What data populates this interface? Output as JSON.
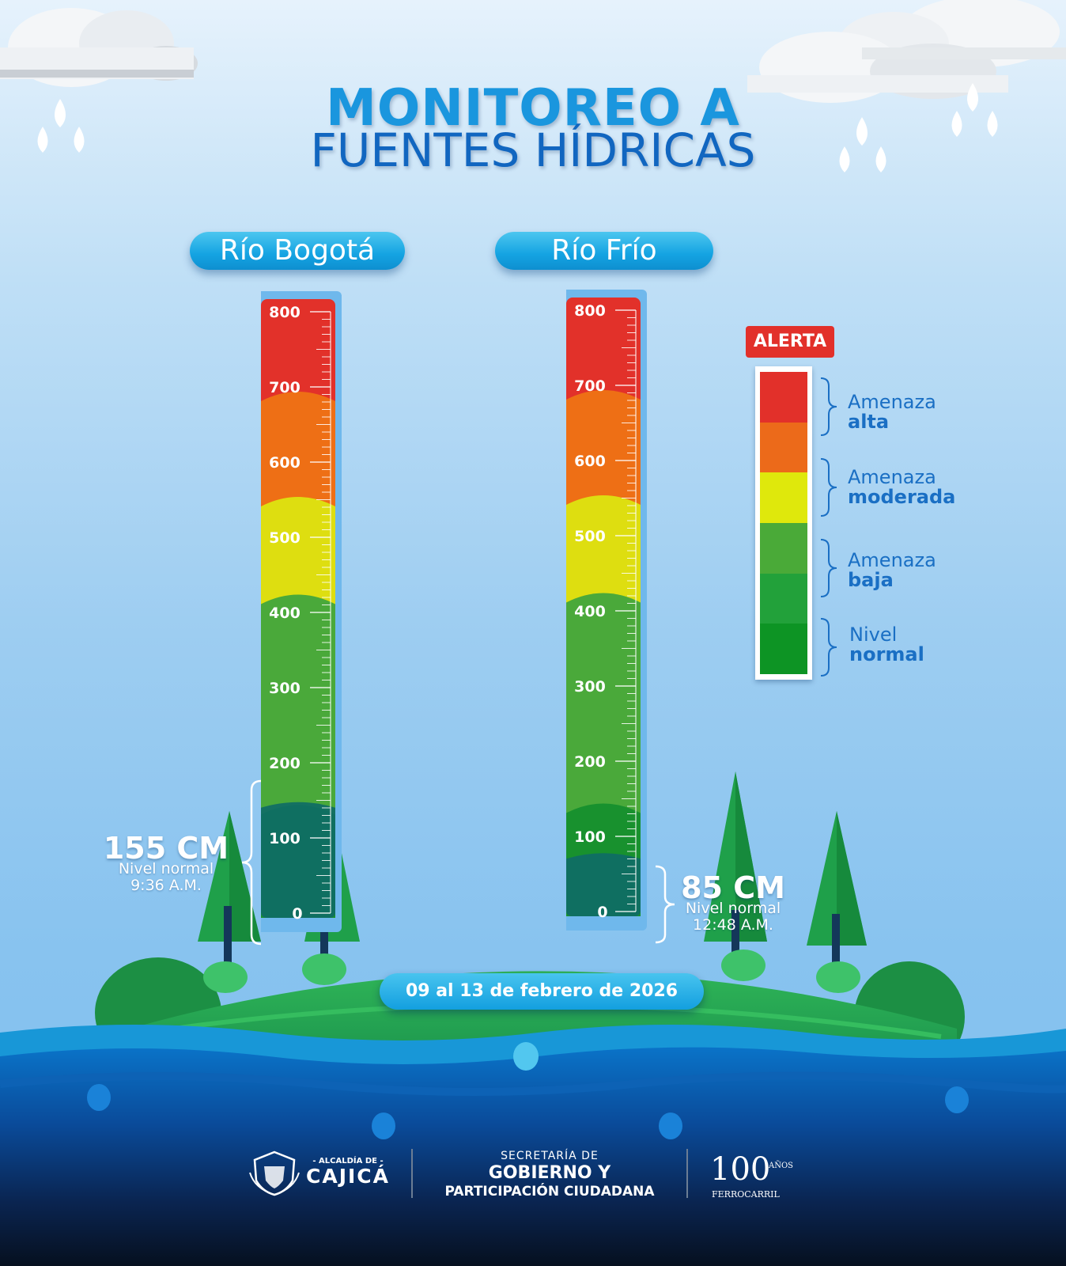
{
  "title": {
    "line1": "MONITOREO A",
    "line2": "FUENTES HÍDRICAS"
  },
  "gauges": [
    {
      "river": "Río Bogotá",
      "level_cm": 155,
      "level_label": "155 CM",
      "status": "Nivel normal",
      "time": "9:36 A.M."
    },
    {
      "river": "Río Frío",
      "level_cm": 85,
      "level_label": "85 CM",
      "status": "Nivel normal",
      "time": "12:48 A.M."
    }
  ],
  "scale": {
    "min": 0,
    "max": 800,
    "tick_labels": [
      "800",
      "700",
      "600",
      "500",
      "400",
      "300",
      "200",
      "100",
      "0"
    ]
  },
  "legend": {
    "badge": "ALERTA",
    "items": [
      {
        "line1": "Amenaza",
        "line2": "alta"
      },
      {
        "line1": "Amenaza",
        "line2": "moderada"
      },
      {
        "line1": "Amenaza",
        "line2": "baja"
      },
      {
        "line1": "Nivel",
        "line2": "normal"
      }
    ]
  },
  "colors": {
    "red": "#e2312a",
    "orange": "#ee6f15",
    "yellow": "#dede10",
    "green": "#4aa93a",
    "dark_green": "#18912e",
    "water": "#0f6d66"
  },
  "date_range": "09 al 13 de febrero de 2026",
  "footer": {
    "alcaldia_small": "- ALCALDÍA DE -",
    "alcaldia_name": "CAJICÁ",
    "secretaria_small": "SECRETARÍA DE",
    "secretaria_line1": "GOBIERNO Y",
    "secretaria_line2": "PARTICIPACIÓN CIUDADANA",
    "anniversary_number": "100",
    "anniversary_small": "AÑOS",
    "anniversary_name": "FERROCARRIL"
  }
}
